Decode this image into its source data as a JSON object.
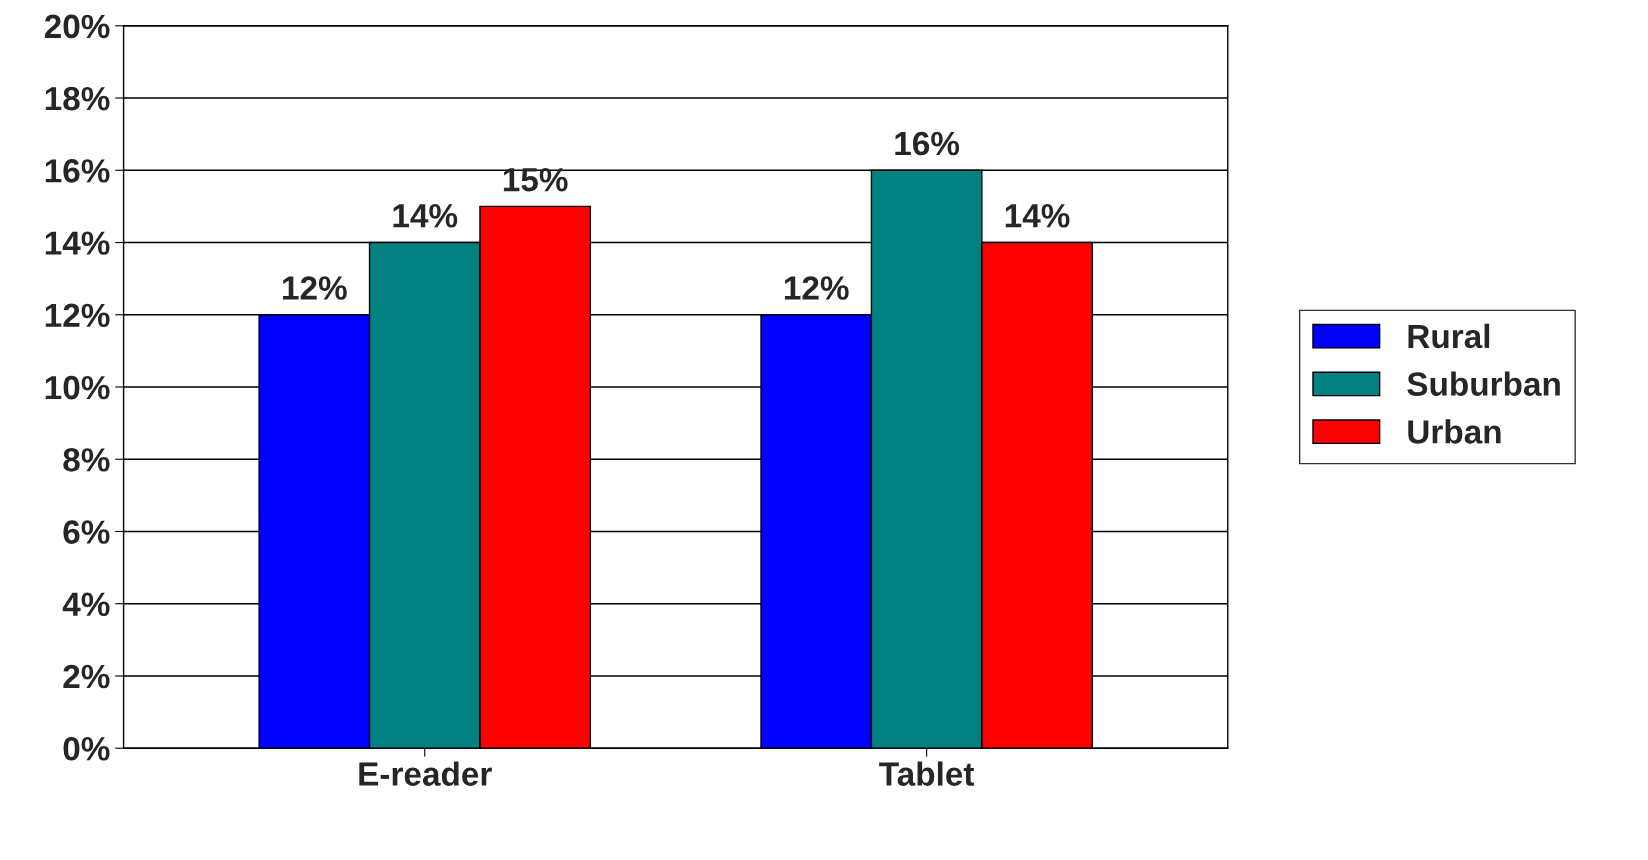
{
  "chart_data": {
    "type": "bar",
    "categories": [
      "E-reader",
      "Tablet"
    ],
    "series": [
      {
        "name": "Rural",
        "color": "#0000ff",
        "values": [
          12,
          12
        ],
        "value_labels": [
          "12%",
          "12%"
        ]
      },
      {
        "name": "Suburban",
        "color": "#008080",
        "values": [
          14,
          16
        ],
        "value_labels": [
          "14%",
          "16%"
        ]
      },
      {
        "name": "Urban",
        "color": "#ff0000",
        "values": [
          15,
          14
        ],
        "value_labels": [
          "15%",
          "14%"
        ]
      }
    ],
    "ylim": [
      0,
      20
    ],
    "yticks": [
      {
        "value": 0,
        "label": "0%"
      },
      {
        "value": 2,
        "label": "2%"
      },
      {
        "value": 4,
        "label": "4%"
      },
      {
        "value": 6,
        "label": "6%"
      },
      {
        "value": 8,
        "label": "8%"
      },
      {
        "value": 10,
        "label": "10%"
      },
      {
        "value": 12,
        "label": "12%"
      },
      {
        "value": 14,
        "label": "14%"
      },
      {
        "value": 16,
        "label": "16%"
      },
      {
        "value": 18,
        "label": "18%"
      },
      {
        "value": 20,
        "label": "20%"
      }
    ],
    "grid": "y",
    "legend": "right"
  }
}
